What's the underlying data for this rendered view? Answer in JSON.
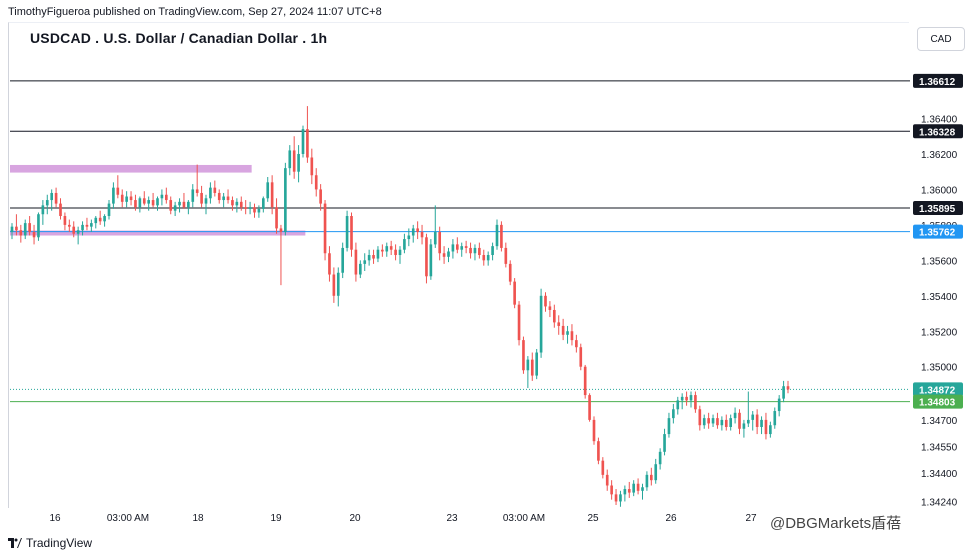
{
  "header": {
    "credit": "TimothyFigueroa published on TradingView.com, Sep 27, 2024 11:07 UTC+8",
    "title": "USDCAD . U.S. Dollar / Canadian Dollar . 1h",
    "currency": "CAD"
  },
  "footer": {
    "brand": "TradingView",
    "watermark": "@DBGMarkets盾蓓"
  },
  "chart_data": {
    "type": "candlestick",
    "ylim": [
      1.3422,
      1.3673
    ],
    "y_ticks": [
      "1.36400",
      "1.36200",
      "1.36000",
      "1.35800",
      "1.35600",
      "1.35400",
      "1.35200",
      "1.35000",
      "1.34700",
      "1.34550",
      "1.34400",
      "1.34240"
    ],
    "x_ticks": [
      "16",
      "03:00 AM",
      "18",
      "19",
      "20",
      "23",
      "03:00 AM",
      "25",
      "26",
      "27"
    ],
    "levels": [
      {
        "value": 1.36612,
        "label": "1.36612",
        "color": "#131722"
      },
      {
        "value": 1.36328,
        "label": "1.36328",
        "color": "#131722"
      },
      {
        "value": 1.35895,
        "label": "1.35895",
        "color": "#131722"
      },
      {
        "value": 1.35762,
        "label": "1.35762",
        "color": "#2196f3"
      },
      {
        "value": 1.34872,
        "label": "1.34872",
        "color": "#26a69a"
      },
      {
        "value": 1.34803,
        "label": "1.34803",
        "color": "#4caf50"
      }
    ],
    "zones": [
      {
        "y_from": 1.36138,
        "y_to": 1.36095,
        "x_from_frac": 0.0,
        "x_to_frac": 0.27,
        "color": "#d8a5e0"
      },
      {
        "y_from": 1.35768,
        "y_to": 1.3574,
        "x_from_frac": 0.0,
        "x_to_frac": 0.33,
        "color": "#d8a5e0"
      }
    ],
    "candles": [
      {
        "o": 1.3576,
        "h": 1.3581,
        "l": 1.3572,
        "c": 1.3579
      },
      {
        "o": 1.3579,
        "h": 1.3586,
        "l": 1.3574,
        "c": 1.3577
      },
      {
        "o": 1.3577,
        "h": 1.358,
        "l": 1.357,
        "c": 1.3574
      },
      {
        "o": 1.3574,
        "h": 1.3583,
        "l": 1.3572,
        "c": 1.3581
      },
      {
        "o": 1.3581,
        "h": 1.3585,
        "l": 1.3574,
        "c": 1.3576
      },
      {
        "o": 1.3576,
        "h": 1.358,
        "l": 1.3569,
        "c": 1.3573
      },
      {
        "o": 1.3573,
        "h": 1.3587,
        "l": 1.3571,
        "c": 1.3586
      },
      {
        "o": 1.3586,
        "h": 1.3594,
        "l": 1.358,
        "c": 1.3591
      },
      {
        "o": 1.3591,
        "h": 1.3597,
        "l": 1.3586,
        "c": 1.3594
      },
      {
        "o": 1.3594,
        "h": 1.36,
        "l": 1.3588,
        "c": 1.3598
      },
      {
        "o": 1.3598,
        "h": 1.3601,
        "l": 1.359,
        "c": 1.3592
      },
      {
        "o": 1.3592,
        "h": 1.3595,
        "l": 1.3583,
        "c": 1.3585
      },
      {
        "o": 1.3585,
        "h": 1.3587,
        "l": 1.3577,
        "c": 1.358
      },
      {
        "o": 1.358,
        "h": 1.3583,
        "l": 1.3576,
        "c": 1.3579
      },
      {
        "o": 1.3579,
        "h": 1.3582,
        "l": 1.3573,
        "c": 1.3575
      },
      {
        "o": 1.3575,
        "h": 1.3579,
        "l": 1.3569,
        "c": 1.3577
      },
      {
        "o": 1.3577,
        "h": 1.3582,
        "l": 1.3574,
        "c": 1.358
      },
      {
        "o": 1.358,
        "h": 1.3584,
        "l": 1.3577,
        "c": 1.3579
      },
      {
        "o": 1.3579,
        "h": 1.3583,
        "l": 1.3576,
        "c": 1.3581
      },
      {
        "o": 1.3581,
        "h": 1.3585,
        "l": 1.3578,
        "c": 1.3584
      },
      {
        "o": 1.3584,
        "h": 1.3588,
        "l": 1.358,
        "c": 1.3582
      },
      {
        "o": 1.3582,
        "h": 1.3586,
        "l": 1.3579,
        "c": 1.3585
      },
      {
        "o": 1.3585,
        "h": 1.3594,
        "l": 1.3583,
        "c": 1.3592
      },
      {
        "o": 1.3592,
        "h": 1.3604,
        "l": 1.3589,
        "c": 1.3601
      },
      {
        "o": 1.3601,
        "h": 1.3608,
        "l": 1.3595,
        "c": 1.3597
      },
      {
        "o": 1.3597,
        "h": 1.36,
        "l": 1.359,
        "c": 1.3593
      },
      {
        "o": 1.3593,
        "h": 1.3599,
        "l": 1.359,
        "c": 1.3596
      },
      {
        "o": 1.3596,
        "h": 1.3599,
        "l": 1.3591,
        "c": 1.3594
      },
      {
        "o": 1.3594,
        "h": 1.3597,
        "l": 1.3588,
        "c": 1.359
      },
      {
        "o": 1.359,
        "h": 1.3596,
        "l": 1.3587,
        "c": 1.3595
      },
      {
        "o": 1.3595,
        "h": 1.3599,
        "l": 1.3591,
        "c": 1.3592
      },
      {
        "o": 1.3592,
        "h": 1.3596,
        "l": 1.3588,
        "c": 1.3594
      },
      {
        "o": 1.3594,
        "h": 1.3598,
        "l": 1.359,
        "c": 1.3591
      },
      {
        "o": 1.3591,
        "h": 1.3596,
        "l": 1.3588,
        "c": 1.3595
      },
      {
        "o": 1.3595,
        "h": 1.36,
        "l": 1.3591,
        "c": 1.3597
      },
      {
        "o": 1.3597,
        "h": 1.3601,
        "l": 1.3592,
        "c": 1.3594
      },
      {
        "o": 1.3594,
        "h": 1.3596,
        "l": 1.3586,
        "c": 1.3588
      },
      {
        "o": 1.3588,
        "h": 1.3593,
        "l": 1.3585,
        "c": 1.3591
      },
      {
        "o": 1.3591,
        "h": 1.3595,
        "l": 1.3587,
        "c": 1.3593
      },
      {
        "o": 1.3593,
        "h": 1.3598,
        "l": 1.3589,
        "c": 1.359
      },
      {
        "o": 1.359,
        "h": 1.3594,
        "l": 1.3586,
        "c": 1.3593
      },
      {
        "o": 1.3593,
        "h": 1.3603,
        "l": 1.359,
        "c": 1.36
      },
      {
        "o": 1.36,
        "h": 1.3614,
        "l": 1.3596,
        "c": 1.3598
      },
      {
        "o": 1.3598,
        "h": 1.3602,
        "l": 1.359,
        "c": 1.3592
      },
      {
        "o": 1.3592,
        "h": 1.3597,
        "l": 1.3586,
        "c": 1.3595
      },
      {
        "o": 1.3595,
        "h": 1.3604,
        "l": 1.3592,
        "c": 1.3601
      },
      {
        "o": 1.3601,
        "h": 1.3605,
        "l": 1.3596,
        "c": 1.3598
      },
      {
        "o": 1.3598,
        "h": 1.36,
        "l": 1.3592,
        "c": 1.3594
      },
      {
        "o": 1.3594,
        "h": 1.3598,
        "l": 1.359,
        "c": 1.3596
      },
      {
        "o": 1.3596,
        "h": 1.36,
        "l": 1.3592,
        "c": 1.3594
      },
      {
        "o": 1.3594,
        "h": 1.3596,
        "l": 1.3588,
        "c": 1.3591
      },
      {
        "o": 1.3591,
        "h": 1.3595,
        "l": 1.3587,
        "c": 1.3593
      },
      {
        "o": 1.3593,
        "h": 1.3596,
        "l": 1.3588,
        "c": 1.359
      },
      {
        "o": 1.359,
        "h": 1.3594,
        "l": 1.3586,
        "c": 1.3589
      },
      {
        "o": 1.3589,
        "h": 1.3593,
        "l": 1.3586,
        "c": 1.359
      },
      {
        "o": 1.359,
        "h": 1.3592,
        "l": 1.3584,
        "c": 1.3587
      },
      {
        "o": 1.3587,
        "h": 1.3591,
        "l": 1.3584,
        "c": 1.3589
      },
      {
        "o": 1.3589,
        "h": 1.3596,
        "l": 1.3587,
        "c": 1.3595
      },
      {
        "o": 1.3595,
        "h": 1.3607,
        "l": 1.3593,
        "c": 1.3604
      },
      {
        "o": 1.3604,
        "h": 1.3608,
        "l": 1.3586,
        "c": 1.359
      },
      {
        "o": 1.359,
        "h": 1.3595,
        "l": 1.3575,
        "c": 1.3578
      },
      {
        "o": 1.3578,
        "h": 1.358,
        "l": 1.3546,
        "c": 1.3576
      },
      {
        "o": 1.3576,
        "h": 1.3615,
        "l": 1.3574,
        "c": 1.3612
      },
      {
        "o": 1.3612,
        "h": 1.3625,
        "l": 1.3608,
        "c": 1.3622
      },
      {
        "o": 1.3622,
        "h": 1.363,
        "l": 1.3606,
        "c": 1.361
      },
      {
        "o": 1.361,
        "h": 1.3625,
        "l": 1.3604,
        "c": 1.362
      },
      {
        "o": 1.362,
        "h": 1.3636,
        "l": 1.3618,
        "c": 1.3634
      },
      {
        "o": 1.3634,
        "h": 1.3647,
        "l": 1.3615,
        "c": 1.3618
      },
      {
        "o": 1.3618,
        "h": 1.3623,
        "l": 1.3603,
        "c": 1.3608
      },
      {
        "o": 1.3608,
        "h": 1.3612,
        "l": 1.3596,
        "c": 1.36
      },
      {
        "o": 1.36,
        "h": 1.3603,
        "l": 1.3588,
        "c": 1.3592
      },
      {
        "o": 1.3592,
        "h": 1.3594,
        "l": 1.356,
        "c": 1.3564
      },
      {
        "o": 1.3564,
        "h": 1.3568,
        "l": 1.3548,
        "c": 1.3552
      },
      {
        "o": 1.3552,
        "h": 1.3556,
        "l": 1.3536,
        "c": 1.354
      },
      {
        "o": 1.354,
        "h": 1.3556,
        "l": 1.3534,
        "c": 1.3553
      },
      {
        "o": 1.3553,
        "h": 1.357,
        "l": 1.355,
        "c": 1.3567
      },
      {
        "o": 1.3567,
        "h": 1.3588,
        "l": 1.3565,
        "c": 1.3585
      },
      {
        "o": 1.3585,
        "h": 1.3587,
        "l": 1.3562,
        "c": 1.3566
      },
      {
        "o": 1.3566,
        "h": 1.357,
        "l": 1.3548,
        "c": 1.3552
      },
      {
        "o": 1.3552,
        "h": 1.356,
        "l": 1.355,
        "c": 1.3558
      },
      {
        "o": 1.3558,
        "h": 1.3564,
        "l": 1.3554,
        "c": 1.356
      },
      {
        "o": 1.356,
        "h": 1.3566,
        "l": 1.3557,
        "c": 1.3563
      },
      {
        "o": 1.3563,
        "h": 1.3566,
        "l": 1.3558,
        "c": 1.3561
      },
      {
        "o": 1.3561,
        "h": 1.3568,
        "l": 1.3559,
        "c": 1.3566
      },
      {
        "o": 1.3566,
        "h": 1.3569,
        "l": 1.3562,
        "c": 1.3565
      },
      {
        "o": 1.3565,
        "h": 1.357,
        "l": 1.3562,
        "c": 1.3568
      },
      {
        "o": 1.3568,
        "h": 1.3571,
        "l": 1.3563,
        "c": 1.3566
      },
      {
        "o": 1.3566,
        "h": 1.3569,
        "l": 1.356,
        "c": 1.3563
      },
      {
        "o": 1.3563,
        "h": 1.3568,
        "l": 1.3558,
        "c": 1.3566
      },
      {
        "o": 1.3566,
        "h": 1.3575,
        "l": 1.3564,
        "c": 1.3572
      },
      {
        "o": 1.3572,
        "h": 1.3578,
        "l": 1.3568,
        "c": 1.3574
      },
      {
        "o": 1.3574,
        "h": 1.358,
        "l": 1.357,
        "c": 1.3578
      },
      {
        "o": 1.3578,
        "h": 1.3582,
        "l": 1.3572,
        "c": 1.3576
      },
      {
        "o": 1.3576,
        "h": 1.358,
        "l": 1.3569,
        "c": 1.3573
      },
      {
        "o": 1.3573,
        "h": 1.3575,
        "l": 1.3547,
        "c": 1.3551
      },
      {
        "o": 1.3551,
        "h": 1.3572,
        "l": 1.3549,
        "c": 1.3569
      },
      {
        "o": 1.3569,
        "h": 1.3591,
        "l": 1.3567,
        "c": 1.3576
      },
      {
        "o": 1.3576,
        "h": 1.3579,
        "l": 1.356,
        "c": 1.3564
      },
      {
        "o": 1.3564,
        "h": 1.3568,
        "l": 1.3558,
        "c": 1.3562
      },
      {
        "o": 1.3562,
        "h": 1.3567,
        "l": 1.3559,
        "c": 1.3565
      },
      {
        "o": 1.3565,
        "h": 1.3572,
        "l": 1.3561,
        "c": 1.3569
      },
      {
        "o": 1.3569,
        "h": 1.3573,
        "l": 1.3564,
        "c": 1.3566
      },
      {
        "o": 1.3566,
        "h": 1.357,
        "l": 1.3562,
        "c": 1.3568
      },
      {
        "o": 1.3568,
        "h": 1.3571,
        "l": 1.3564,
        "c": 1.3567
      },
      {
        "o": 1.3567,
        "h": 1.357,
        "l": 1.3561,
        "c": 1.3564
      },
      {
        "o": 1.3564,
        "h": 1.3569,
        "l": 1.356,
        "c": 1.3567
      },
      {
        "o": 1.3567,
        "h": 1.357,
        "l": 1.3561,
        "c": 1.3563
      },
      {
        "o": 1.3563,
        "h": 1.3566,
        "l": 1.3557,
        "c": 1.356
      },
      {
        "o": 1.356,
        "h": 1.3565,
        "l": 1.3557,
        "c": 1.3563
      },
      {
        "o": 1.3563,
        "h": 1.357,
        "l": 1.356,
        "c": 1.3568
      },
      {
        "o": 1.3568,
        "h": 1.3583,
        "l": 1.3566,
        "c": 1.358
      },
      {
        "o": 1.358,
        "h": 1.3582,
        "l": 1.3565,
        "c": 1.3567
      },
      {
        "o": 1.3567,
        "h": 1.357,
        "l": 1.3556,
        "c": 1.3558
      },
      {
        "o": 1.3558,
        "h": 1.356,
        "l": 1.3546,
        "c": 1.3548
      },
      {
        "o": 1.3548,
        "h": 1.355,
        "l": 1.3533,
        "c": 1.3535
      },
      {
        "o": 1.3535,
        "h": 1.3537,
        "l": 1.3512,
        "c": 1.3515
      },
      {
        "o": 1.3515,
        "h": 1.3517,
        "l": 1.3496,
        "c": 1.3498
      },
      {
        "o": 1.3498,
        "h": 1.3506,
        "l": 1.3488,
        "c": 1.3504
      },
      {
        "o": 1.3504,
        "h": 1.3508,
        "l": 1.3492,
        "c": 1.3495
      },
      {
        "o": 1.3495,
        "h": 1.351,
        "l": 1.3493,
        "c": 1.3508
      },
      {
        "o": 1.3508,
        "h": 1.3544,
        "l": 1.3505,
        "c": 1.354
      },
      {
        "o": 1.354,
        "h": 1.3542,
        "l": 1.3531,
        "c": 1.3534
      },
      {
        "o": 1.3534,
        "h": 1.3537,
        "l": 1.3528,
        "c": 1.3532
      },
      {
        "o": 1.3532,
        "h": 1.3535,
        "l": 1.3522,
        "c": 1.3525
      },
      {
        "o": 1.3525,
        "h": 1.3529,
        "l": 1.3518,
        "c": 1.3523
      },
      {
        "o": 1.3523,
        "h": 1.3527,
        "l": 1.3515,
        "c": 1.3518
      },
      {
        "o": 1.3518,
        "h": 1.3523,
        "l": 1.3513,
        "c": 1.352
      },
      {
        "o": 1.352,
        "h": 1.3524,
        "l": 1.3512,
        "c": 1.3515
      },
      {
        "o": 1.3515,
        "h": 1.3518,
        "l": 1.3508,
        "c": 1.3511
      },
      {
        "o": 1.3511,
        "h": 1.3513,
        "l": 1.3498,
        "c": 1.35
      },
      {
        "o": 1.35,
        "h": 1.3501,
        "l": 1.3482,
        "c": 1.3484
      },
      {
        "o": 1.3484,
        "h": 1.3485,
        "l": 1.3469,
        "c": 1.347
      },
      {
        "o": 1.347,
        "h": 1.3472,
        "l": 1.3456,
        "c": 1.3458
      },
      {
        "o": 1.3458,
        "h": 1.346,
        "l": 1.3445,
        "c": 1.3447
      },
      {
        "o": 1.3447,
        "h": 1.3449,
        "l": 1.3437,
        "c": 1.3439
      },
      {
        "o": 1.3439,
        "h": 1.3442,
        "l": 1.343,
        "c": 1.3433
      },
      {
        "o": 1.3433,
        "h": 1.3436,
        "l": 1.3425,
        "c": 1.3428
      },
      {
        "o": 1.3428,
        "h": 1.3431,
        "l": 1.3422,
        "c": 1.3424
      },
      {
        "o": 1.3424,
        "h": 1.343,
        "l": 1.3421,
        "c": 1.3428
      },
      {
        "o": 1.3428,
        "h": 1.3433,
        "l": 1.3424,
        "c": 1.3431
      },
      {
        "o": 1.3431,
        "h": 1.3435,
        "l": 1.3426,
        "c": 1.3429
      },
      {
        "o": 1.3429,
        "h": 1.3436,
        "l": 1.3427,
        "c": 1.3434
      },
      {
        "o": 1.3434,
        "h": 1.3437,
        "l": 1.3428,
        "c": 1.343
      },
      {
        "o": 1.343,
        "h": 1.3434,
        "l": 1.3425,
        "c": 1.3432
      },
      {
        "o": 1.3432,
        "h": 1.3441,
        "l": 1.343,
        "c": 1.3439
      },
      {
        "o": 1.3439,
        "h": 1.3443,
        "l": 1.3433,
        "c": 1.3436
      },
      {
        "o": 1.3436,
        "h": 1.3448,
        "l": 1.3434,
        "c": 1.3445
      },
      {
        "o": 1.3445,
        "h": 1.3454,
        "l": 1.3442,
        "c": 1.3452
      },
      {
        "o": 1.3452,
        "h": 1.3465,
        "l": 1.345,
        "c": 1.3462
      },
      {
        "o": 1.3462,
        "h": 1.3474,
        "l": 1.346,
        "c": 1.3471
      },
      {
        "o": 1.3471,
        "h": 1.3479,
        "l": 1.3468,
        "c": 1.3476
      },
      {
        "o": 1.3476,
        "h": 1.3483,
        "l": 1.3473,
        "c": 1.3481
      },
      {
        "o": 1.3481,
        "h": 1.3485,
        "l": 1.3476,
        "c": 1.3483
      },
      {
        "o": 1.3483,
        "h": 1.3486,
        "l": 1.3478,
        "c": 1.3481
      },
      {
        "o": 1.3481,
        "h": 1.3486,
        "l": 1.3477,
        "c": 1.3484
      },
      {
        "o": 1.3484,
        "h": 1.3486,
        "l": 1.3474,
        "c": 1.3476
      },
      {
        "o": 1.3476,
        "h": 1.3478,
        "l": 1.3464,
        "c": 1.3467
      },
      {
        "o": 1.3467,
        "h": 1.3473,
        "l": 1.3465,
        "c": 1.3471
      },
      {
        "o": 1.3471,
        "h": 1.3474,
        "l": 1.3465,
        "c": 1.3468
      },
      {
        "o": 1.3468,
        "h": 1.3473,
        "l": 1.3466,
        "c": 1.3471
      },
      {
        "o": 1.3471,
        "h": 1.3474,
        "l": 1.3465,
        "c": 1.3467
      },
      {
        "o": 1.3467,
        "h": 1.3472,
        "l": 1.3464,
        "c": 1.347
      },
      {
        "o": 1.347,
        "h": 1.3473,
        "l": 1.3464,
        "c": 1.3466
      },
      {
        "o": 1.3466,
        "h": 1.3473,
        "l": 1.3464,
        "c": 1.3471
      },
      {
        "o": 1.3471,
        "h": 1.3477,
        "l": 1.3468,
        "c": 1.3474
      },
      {
        "o": 1.3474,
        "h": 1.3476,
        "l": 1.3462,
        "c": 1.3465
      },
      {
        "o": 1.3465,
        "h": 1.347,
        "l": 1.346,
        "c": 1.3468
      },
      {
        "o": 1.3468,
        "h": 1.3486,
        "l": 1.3466,
        "c": 1.347
      },
      {
        "o": 1.347,
        "h": 1.3475,
        "l": 1.3464,
        "c": 1.3473
      },
      {
        "o": 1.3473,
        "h": 1.3476,
        "l": 1.3462,
        "c": 1.3466
      },
      {
        "o": 1.3466,
        "h": 1.3472,
        "l": 1.3462,
        "c": 1.347
      },
      {
        "o": 1.347,
        "h": 1.3474,
        "l": 1.3459,
        "c": 1.3462
      },
      {
        "o": 1.3462,
        "h": 1.3469,
        "l": 1.346,
        "c": 1.3467
      },
      {
        "o": 1.3467,
        "h": 1.3477,
        "l": 1.3465,
        "c": 1.3475
      },
      {
        "o": 1.3475,
        "h": 1.3484,
        "l": 1.3472,
        "c": 1.3482
      },
      {
        "o": 1.3482,
        "h": 1.3492,
        "l": 1.348,
        "c": 1.3489
      },
      {
        "o": 1.3489,
        "h": 1.3492,
        "l": 1.3485,
        "c": 1.34872
      }
    ],
    "up_color": "#26a69a",
    "down_color": "#ef5350"
  }
}
